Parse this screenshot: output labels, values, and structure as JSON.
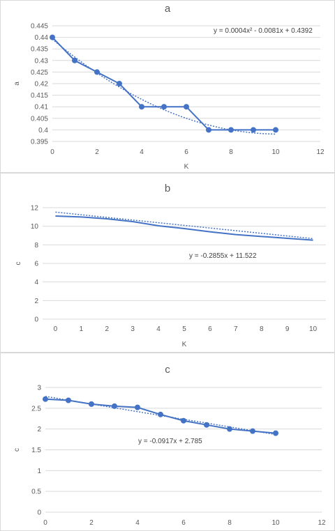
{
  "chart_data": [
    {
      "type": "line",
      "title": "a",
      "xlabel": "K",
      "ylabel": "a",
      "x": [
        0,
        1,
        2,
        3,
        4,
        5,
        6,
        7,
        8,
        9,
        10
      ],
      "series": [
        {
          "values": [
            0.44,
            0.43,
            0.425,
            0.42,
            0.41,
            0.41,
            0.41,
            0.4,
            0.4,
            0.4,
            0.4
          ],
          "markers": true
        }
      ],
      "trendline": {
        "equation": "y = 0.0004x² - 0.0081x + 0.4392",
        "a2": 0.0004,
        "a1": -0.0081,
        "a0": 0.4392
      },
      "xlim": [
        0,
        12
      ],
      "ylim": [
        0.395,
        0.445
      ],
      "xticks": [
        "0",
        "2",
        "4",
        "6",
        "8",
        "10",
        "12"
      ],
      "yticks": [
        "0.395",
        "0.4",
        "0.405",
        "0.41",
        "0.415",
        "0.42",
        "0.425",
        "0.43",
        "0.435",
        "0.44",
        "0.445"
      ],
      "grid": true
    },
    {
      "type": "line",
      "title": "b",
      "xlabel": "K",
      "ylabel": "c",
      "x": [
        0,
        1,
        2,
        3,
        4,
        5,
        6,
        7,
        8,
        9,
        10
      ],
      "series": [
        {
          "values": [
            11.1,
            11.0,
            10.8,
            10.5,
            10.05,
            9.75,
            9.4,
            9.1,
            8.9,
            8.7,
            8.5
          ],
          "markers": false
        }
      ],
      "trendline": {
        "equation": "y = -0.2855x + 11.522",
        "a1": -0.2855,
        "a0": 11.522
      },
      "xlim": [
        -0.5,
        10.5
      ],
      "ylim": [
        0,
        12
      ],
      "xticks": [
        "0",
        "1",
        "2",
        "3",
        "4",
        "5",
        "6",
        "7",
        "8",
        "9",
        "10"
      ],
      "yticks": [
        "0",
        "2",
        "4",
        "6",
        "8",
        "10",
        "12"
      ],
      "grid": true
    },
    {
      "type": "line",
      "title": "c",
      "xlabel": "",
      "ylabel": "c",
      "x": [
        0,
        1,
        2,
        3,
        4,
        5,
        6,
        7,
        8,
        9,
        10
      ],
      "series": [
        {
          "values": [
            2.72,
            2.69,
            2.6,
            2.55,
            2.52,
            2.35,
            2.2,
            2.1,
            2.0,
            1.95,
            1.9
          ],
          "markers": true
        }
      ],
      "trendline": {
        "equation": "y = -0.0917x + 2.785",
        "a1": -0.0917,
        "a0": 2.785
      },
      "xlim": [
        0,
        12
      ],
      "ylim": [
        0,
        3
      ],
      "xticks": [
        "0",
        "2",
        "4",
        "6",
        "8",
        "10",
        "12"
      ],
      "yticks": [
        "0",
        "0.5",
        "1",
        "1.5",
        "2",
        "2.5",
        "3"
      ],
      "grid": true
    }
  ]
}
